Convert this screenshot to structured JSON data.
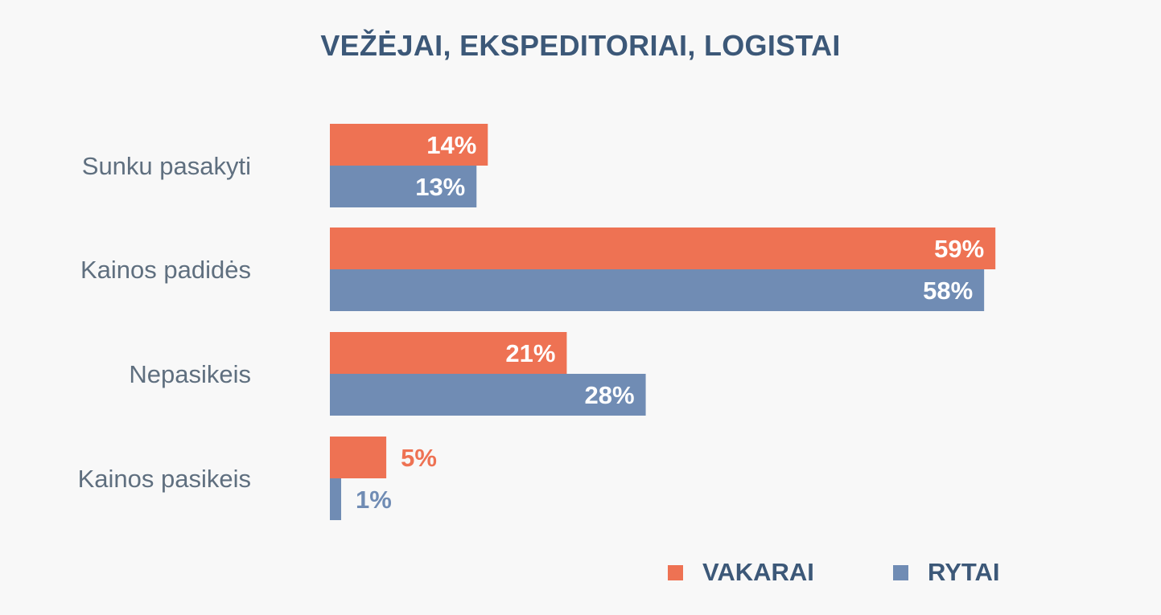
{
  "colors": {
    "vakarai": "#ee7253",
    "rytai": "#708cb4",
    "title": "#3c5878",
    "category_label": "#5f6f7f"
  },
  "chart_data": {
    "type": "bar",
    "orientation": "horizontal",
    "title": "VEŽĖJAI, EKSPEDITORIAI, LOGISTAI",
    "categories": [
      "Sunku pasakyti",
      "Kainos padidės",
      "Nepasikeis",
      "Kainos pasikeis"
    ],
    "series": [
      {
        "name": "VAKARAI",
        "values": [
          14,
          59,
          21,
          5
        ],
        "labels": [
          "14%",
          "59%",
          "21%",
          "5%"
        ],
        "color": "#ee7253"
      },
      {
        "name": "RYTAI",
        "values": [
          13,
          58,
          28,
          1
        ],
        "labels": [
          "13%",
          "58%",
          "28%",
          "1%"
        ],
        "color": "#708cb4"
      }
    ],
    "xlim": [
      0,
      100
    ],
    "unit": "%",
    "grid": false,
    "legend": "bottom-right"
  }
}
